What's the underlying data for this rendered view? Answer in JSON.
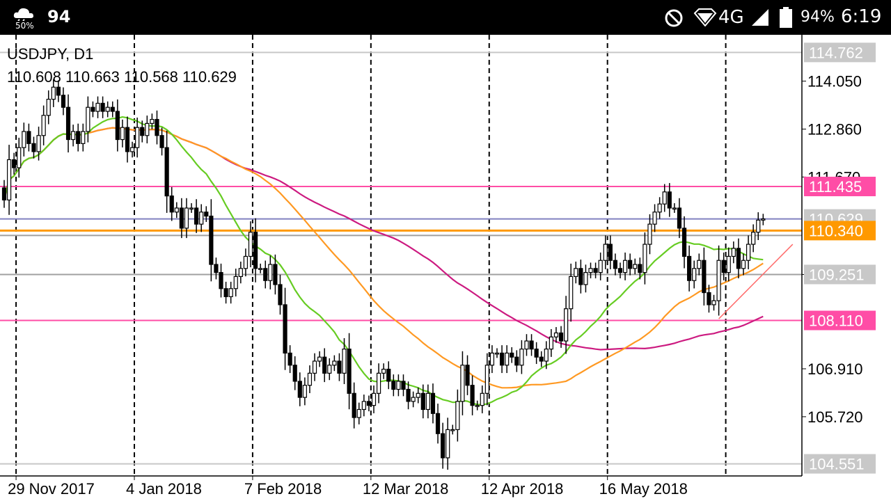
{
  "status_bar": {
    "weather_label": "50%",
    "temperature": "94",
    "network": "4G",
    "battery": "94%",
    "time": "6:19"
  },
  "chart_data": {
    "type": "candlestick",
    "symbol_label": "USDJPY, D1",
    "ohlc_label": "110.608 110.663 110.568 110.629",
    "y_ticks": [
      "114.050",
      "112.860",
      "111.670",
      "109.251",
      "106.910",
      "105.720"
    ],
    "ylim": [
      104.25,
      115.2
    ],
    "grid": "vertical dashed separators at month starts",
    "x_ticks": [
      {
        "index": 1,
        "label": "29 Nov 2017"
      },
      {
        "index": 25,
        "label": "4 Jan 2018"
      },
      {
        "index": 49,
        "label": "7 Feb 2018"
      },
      {
        "index": 73,
        "label": "12 Mar 2018"
      },
      {
        "index": 97,
        "label": "12 Apr 2018"
      },
      {
        "index": 121,
        "label": "16 May 2018"
      }
    ],
    "separators": [
      1,
      25,
      49,
      73,
      97,
      121,
      145
    ],
    "price_lines": [
      {
        "value": 114.762,
        "label": "114.762",
        "color": "#c8c8c8",
        "label_bg": "#c8c8c8",
        "label_color": "#ffffff"
      },
      {
        "value": 111.435,
        "label": "111.435",
        "color": "#ff4da6",
        "label_bg": "#ff4da6",
        "label_color": "#ffffff"
      },
      {
        "value": 110.629,
        "label": "110.629",
        "color": "#8080c0",
        "label_bg": "#c8c8c8",
        "label_color": "#ffffff"
      },
      {
        "value": 110.34,
        "label": "110.340",
        "color": "#ff9900",
        "label_bg": "#ff9900",
        "label_color": "#ffffff"
      },
      {
        "value": 110.22,
        "label": "",
        "color": "#a0a0a0"
      },
      {
        "value": 109.251,
        "label": "109.251",
        "color": "#a0a0a0",
        "label_bg": "#c8c8c8",
        "label_color": "#ffffff"
      },
      {
        "value": 108.11,
        "label": "108.110",
        "color": "#ff4da6",
        "label_bg": "#ff4da6",
        "label_color": "#ffffff"
      },
      {
        "value": 104.551,
        "label": "104.551",
        "color": "#c8c8c8",
        "label_bg": "#c8c8c8",
        "label_color": "#ffffff"
      }
    ],
    "closes": [
      111.1,
      112.1,
      111.9,
      112.4,
      112.8,
      112.5,
      112.3,
      112.7,
      113.2,
      113.6,
      113.9,
      113.7,
      113.4,
      112.6,
      112.8,
      112.5,
      112.8,
      113.4,
      113.3,
      113.5,
      113.3,
      113.4,
      113.3,
      112.6,
      112.9,
      112.3,
      112.4,
      112.9,
      112.7,
      113.0,
      113.1,
      112.7,
      112.4,
      111.2,
      110.8,
      110.9,
      110.4,
      110.9,
      110.9,
      110.5,
      110.8,
      110.7,
      109.5,
      109.3,
      108.9,
      108.7,
      108.9,
      109.2,
      109.4,
      109.7,
      110.3,
      109.4,
      109.4,
      109.1,
      109.5,
      109.0,
      108.5,
      107.3,
      107.0,
      106.6,
      106.2,
      106.5,
      106.8,
      107.1,
      107.2,
      106.8,
      107.0,
      107.1,
      106.8,
      107.4,
      106.3,
      105.7,
      105.9,
      106.1,
      106.0,
      106.3,
      106.8,
      106.9,
      106.6,
      106.4,
      106.6,
      106.4,
      106.1,
      106.2,
      106.3,
      105.9,
      106.3,
      105.8,
      105.3,
      104.7,
      105.4,
      105.4,
      106.1,
      107.0,
      106.5,
      106.0,
      106.0,
      106.3,
      107.0,
      107.3,
      107.3,
      107.0,
      107.3,
      107.2,
      107.0,
      107.4,
      107.6,
      107.4,
      107.2,
      107.1,
      107.4,
      107.7,
      107.8,
      107.6,
      108.4,
      109.2,
      109.4,
      109.0,
      109.3,
      109.4,
      109.3,
      109.6,
      110.0,
      109.6,
      109.4,
      109.3,
      109.6,
      109.4,
      109.5,
      109.3,
      110.0,
      110.5,
      110.8,
      111.0,
      111.3,
      110.9,
      110.9,
      110.4,
      109.7,
      109.1,
      109.4,
      109.6,
      108.8,
      108.5,
      108.6,
      109.6,
      109.3,
      109.7,
      109.9,
      109.4,
      109.6,
      110.0,
      110.3,
      110.6,
      110.629
    ]
  }
}
